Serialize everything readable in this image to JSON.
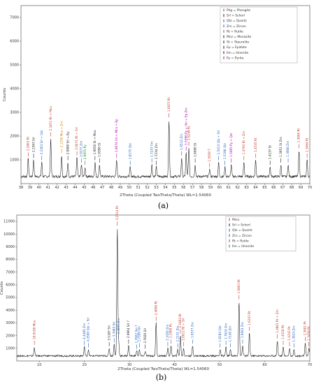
{
  "chart_data": [
    {
      "type": "line",
      "caption": "(a)",
      "xlabel": "2Theta (Coupled TwoTheta/Theta) WL=1.54060",
      "ylabel": "Counts",
      "xlim": [
        38,
        70
      ],
      "ylim": [
        0,
        7500
      ],
      "x_ticks": [
        38,
        39,
        40,
        41,
        42,
        43,
        44,
        45,
        46,
        47,
        48,
        49,
        50,
        51,
        52,
        53,
        54,
        55,
        56,
        57,
        58,
        59,
        60,
        61,
        62,
        63,
        64,
        65,
        66,
        67,
        68,
        69,
        70
      ],
      "y_ticks": [
        1000,
        2000,
        3000,
        4000,
        5000,
        6000,
        7000
      ],
      "baseline": 300,
      "legend": [
        {
          "code": "Phg",
          "name": "Phengite",
          "color": "#c0392b"
        },
        {
          "code": "Srl",
          "name": "Schorl",
          "color": "#1a1a1a"
        },
        {
          "code": "Qtz",
          "name": "Quartz",
          "color": "#1f5fbf"
        },
        {
          "code": "Zrn",
          "name": "Zircon",
          "color": "#1f5fbf"
        },
        {
          "code": "Rt",
          "name": "Rutile",
          "color": "#c0392b"
        },
        {
          "code": "Mnz",
          "name": "Monazite",
          "color": "#1a1a1a"
        },
        {
          "code": "St",
          "name": "Staurolite",
          "color": "#1a1a1a"
        },
        {
          "code": "Ep",
          "name": "Epidote",
          "color": "#1a1a1a"
        },
        {
          "code": "Ilm",
          "name": "Ilmenite",
          "color": "#1a1a1a"
        },
        {
          "code": "Py",
          "name": "Pyrite",
          "color": "#b000b0"
        }
      ],
      "peaks": [
        {
          "x": 38.8,
          "y": 1050,
          "label": "2.2863 Rt",
          "color": "#c0392b"
        },
        {
          "x": 39.4,
          "y": 1000,
          "label": "2.2363 Srl",
          "color": "#1a1a1a"
        },
        {
          "x": 40.3,
          "y": 900,
          "label": "2.2363 Srl + Qtz",
          "color": "#1f5fbf"
        },
        {
          "x": 41.3,
          "y": 1900,
          "label": "2.1871 Rt + Mca",
          "color": "#c0392b"
        },
        {
          "x": 42.5,
          "y": 1200,
          "label": "2.1250 Mca + Zrn",
          "color": "#d08000"
        },
        {
          "x": 43.2,
          "y": 900,
          "label": "2.0900 Srl + Ep",
          "color": "#1a1a1a"
        },
        {
          "x": 44.2,
          "y": 1100,
          "label": "2.0471 Rt + Srl",
          "color": "#c0392b"
        },
        {
          "x": 44.7,
          "y": 800,
          "label": "2.0271 Zrn",
          "color": "#1f5fbf"
        },
        {
          "x": 45.1,
          "y": 700,
          "label": "2.0055 Py",
          "color": "#1a8a1a"
        },
        {
          "x": 46.2,
          "y": 900,
          "label": "1.9650 St + Mca",
          "color": "#1a1a1a"
        },
        {
          "x": 46.7,
          "y": 800,
          "label": "1.9390 St",
          "color": "#1a1a1a"
        },
        {
          "x": 48.6,
          "y": 1000,
          "label": "1.8674 Srl + Mca + Ep",
          "color": "#b000b0"
        },
        {
          "x": 50.1,
          "y": 700,
          "label": "1.8175 Qtz",
          "color": "#1f5fbf"
        },
        {
          "x": 52.5,
          "y": 800,
          "label": "1.7237 Ilm",
          "color": "#1f5fbf"
        },
        {
          "x": 53.0,
          "y": 700,
          "label": "1.7234 Zrn",
          "color": "#1a1a1a"
        },
        {
          "x": 54.4,
          "y": 2700,
          "label": "1.6875 Rt",
          "color": "#c0392b"
        },
        {
          "x": 55.8,
          "y": 1100,
          "label": "1.6512 Zrn",
          "color": "#1f5fbf"
        },
        {
          "x": 56.3,
          "y": 1300,
          "label": "1.6396 Py + Ilm + Ep Zrn",
          "color": "#b000b0"
        },
        {
          "x": 56.6,
          "y": 1500,
          "label": "1.6240 Rt",
          "color": "#c0392b"
        },
        {
          "x": 57.3,
          "y": 800,
          "label": "1.6060 St",
          "color": "#1a1a1a"
        },
        {
          "x": 58.9,
          "y": 600,
          "label": "1.5659 T",
          "color": "#c0392b"
        },
        {
          "x": 59.9,
          "y": 900,
          "label": "1.5413 Qtz + Srl",
          "color": "#1f5fbf"
        },
        {
          "x": 60.6,
          "y": 700,
          "label": "1.5198 Qtz",
          "color": "#1f5fbf"
        },
        {
          "x": 61.3,
          "y": 800,
          "label": "1.5065 Py + Qtz",
          "color": "#b000b0"
        },
        {
          "x": 62.7,
          "y": 900,
          "label": "1.4794 Rt + Zrn",
          "color": "#c0392b"
        },
        {
          "x": 64.0,
          "y": 1000,
          "label": "1.4535 Rt",
          "color": "#c0392b"
        },
        {
          "x": 65.6,
          "y": 700,
          "label": "1.4137 St",
          "color": "#1a1a1a"
        },
        {
          "x": 66.8,
          "y": 800,
          "label": "1.3951 St Zrn",
          "color": "#1a1a1a"
        },
        {
          "x": 67.6,
          "y": 800,
          "label": "1.3600 Zrn",
          "color": "#1f5fbf"
        },
        {
          "x": 68.8,
          "y": 1400,
          "label": "1.3600 Rt",
          "color": "#c0392b"
        },
        {
          "x": 69.7,
          "y": 1000,
          "label": "1.3464 Rt",
          "color": "#c0392b"
        }
      ]
    },
    {
      "type": "line",
      "caption": "(b)",
      "xlabel": "2Theta (Coupled TwoTheta/Theta) WL=1.54060",
      "ylabel": "Counts",
      "xlim": [
        5,
        70
      ],
      "ylim": [
        0,
        11500
      ],
      "x_ticks": [
        10,
        20,
        30,
        40,
        50,
        60,
        70
      ],
      "y_ticks": [
        1000,
        2000,
        3000,
        4000,
        5000,
        6000,
        7000,
        8000,
        9000,
        10000,
        11000
      ],
      "baseline": 400,
      "legend": [
        {
          "code": "",
          "name": "Mica",
          "color": "#c0392b"
        },
        {
          "code": "Srl",
          "name": "Schorl",
          "color": "#1a1a1a"
        },
        {
          "code": "Qtz",
          "name": "Quartz",
          "color": "#1f5fbf"
        },
        {
          "code": "Zrn",
          "name": "Zircon",
          "color": "#1f5fbf"
        },
        {
          "code": "Rt",
          "name": "Rutile",
          "color": "#c0392b"
        },
        {
          "code": "Ilm",
          "name": "Ilmenite",
          "color": "#1f5fbf"
        }
      ],
      "peaks": [
        {
          "x": 8.9,
          "y": 1100,
          "label": "10.0100 Mca",
          "color": "#c0392b"
        },
        {
          "x": 20.0,
          "y": 1100,
          "label": "4.4485 Zrn",
          "color": "#1f5fbf"
        },
        {
          "x": 20.9,
          "y": 900,
          "label": "4.2500 Qtz + Srl",
          "color": "#1f5fbf"
        },
        {
          "x": 25.5,
          "y": 1000,
          "label": "3.5187 Srl",
          "color": "#1a1a1a"
        },
        {
          "x": 26.6,
          "y": 1300,
          "label": "3.3483 Srl",
          "color": "#1f5fbf"
        },
        {
          "x": 27.3,
          "y": 10500,
          "label": "3.2514 Rt",
          "color": "#c0392b"
        },
        {
          "x": 27.6,
          "y": 1500,
          "label": "3.3065 Zrn",
          "color": "#1f5fbf"
        },
        {
          "x": 29.8,
          "y": 1200,
          "label": "2.9964 Srl ?",
          "color": "#1a1a1a"
        },
        {
          "x": 31.6,
          "y": 800,
          "label": "1.7602 Ilm ?",
          "color": "#1f5fbf"
        },
        {
          "x": 32.2,
          "y": 900,
          "label": "2.7100 Ilm",
          "color": "#1f5fbf"
        },
        {
          "x": 33.5,
          "y": 800,
          "label": "2.5920 Srl",
          "color": "#1a1a1a"
        },
        {
          "x": 35.9,
          "y": 3000,
          "label": "2.4890 Rt",
          "color": "#c0392b"
        },
        {
          "x": 38.5,
          "y": 1000,
          "label": "2.3350 Zrn",
          "color": "#1f5fbf"
        },
        {
          "x": 39.2,
          "y": 1200,
          "label": "2.2960 Rt",
          "color": "#c0392b"
        },
        {
          "x": 40.7,
          "y": 900,
          "label": "2.2131 Zrn",
          "color": "#1f5fbf"
        },
        {
          "x": 41.3,
          "y": 2000,
          "label": "2.1864 Rt",
          "color": "#c0392b"
        },
        {
          "x": 42.0,
          "y": 1000,
          "label": "2.0811 Rt + Srl",
          "color": "#c0392b"
        },
        {
          "x": 44.0,
          "y": 1200,
          "label": "1.9577 Zrn",
          "color": "#1f5fbf"
        },
        {
          "x": 50.1,
          "y": 900,
          "label": "1.8184 Qtz",
          "color": "#1f5fbf"
        },
        {
          "x": 51.4,
          "y": 1100,
          "label": "1.7624 Zrn",
          "color": "#1f5fbf"
        },
        {
          "x": 52.4,
          "y": 900,
          "label": "1.7130 Zrn",
          "color": "#1f5fbf"
        },
        {
          "x": 54.3,
          "y": 4700,
          "label": "1.6863 Rt",
          "color": "#c0392b"
        },
        {
          "x": 55.1,
          "y": 1200,
          "label": "1.6663 Zrn",
          "color": "#1f5fbf"
        },
        {
          "x": 56.6,
          "y": 2200,
          "label": "1.6247 Rt",
          "color": "#c0392b"
        },
        {
          "x": 62.8,
          "y": 1600,
          "label": "1.4801 Rt + Zrn",
          "color": "#c0392b"
        },
        {
          "x": 64.1,
          "y": 1100,
          "label": "1.4520 Rt",
          "color": "#c0392b"
        },
        {
          "x": 65.5,
          "y": 1000,
          "label": "1.4242 Rt",
          "color": "#c0392b"
        },
        {
          "x": 66.5,
          "y": 900,
          "label": "1.3924 Zrn",
          "color": "#1f5fbf"
        },
        {
          "x": 69.0,
          "y": 1400,
          "label": "1.3601 Rt",
          "color": "#c0392b"
        },
        {
          "x": 69.8,
          "y": 1000,
          "label": "1.3458 Rt",
          "color": "#c0392b"
        }
      ]
    }
  ]
}
